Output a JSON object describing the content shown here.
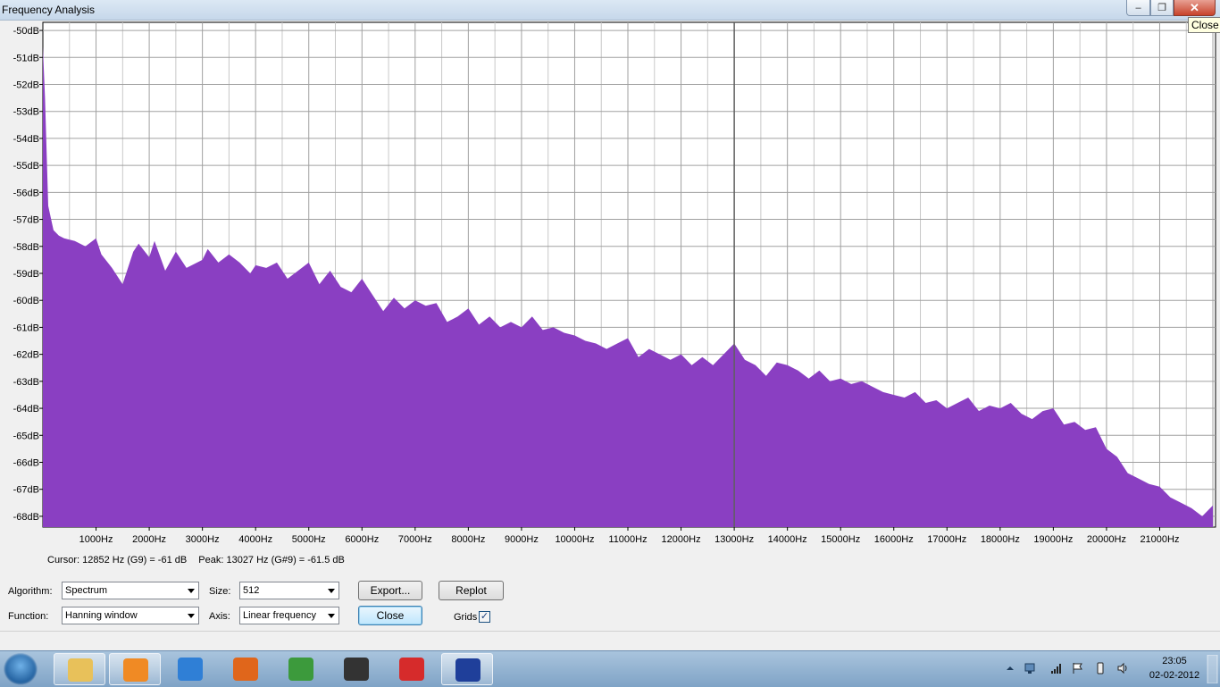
{
  "window": {
    "title": "Frequency Analysis",
    "close_tooltip": "Close"
  },
  "chart_data": {
    "type": "area",
    "color": "#8a3fc2",
    "grid": true,
    "xlabel": "",
    "ylabel": "",
    "xlim": [
      0,
      22050
    ],
    "ylim": [
      -68.4,
      -49.7
    ],
    "y_ticks": [
      "-50dB",
      "-51dB",
      "-52dB",
      "-53dB",
      "-54dB",
      "-55dB",
      "-56dB",
      "-57dB",
      "-58dB",
      "-59dB",
      "-60dB",
      "-61dB",
      "-62dB",
      "-63dB",
      "-64dB",
      "-65dB",
      "-66dB",
      "-67dB",
      "-68dB"
    ],
    "x_ticks": [
      "1000Hz",
      "2000Hz",
      "3000Hz",
      "4000Hz",
      "5000Hz",
      "6000Hz",
      "7000Hz",
      "8000Hz",
      "9000Hz",
      "10000Hz",
      "11000Hz",
      "12000Hz",
      "13000Hz",
      "14000Hz",
      "15000Hz",
      "16000Hz",
      "17000Hz",
      "18000Hz",
      "19000Hz",
      "20000Hz",
      "21000Hz"
    ],
    "series": [
      {
        "x": [
          0,
          40,
          100,
          200,
          300,
          400,
          600,
          800,
          1000,
          1100,
          1300,
          1500,
          1700,
          1800,
          2000,
          2100,
          2300,
          2500,
          2700,
          3000,
          3100,
          3300,
          3500,
          3700,
          3900,
          4000,
          4200,
          4400,
          4600,
          4800,
          5000,
          5200,
          5400,
          5600,
          5800,
          6000,
          6200,
          6400,
          6600,
          6800,
          7000,
          7200,
          7400,
          7600,
          7800,
          8000,
          8200,
          8400,
          8600,
          8800,
          9000,
          9200,
          9400,
          9600,
          9800,
          10000,
          10200,
          10400,
          10600,
          10800,
          11000,
          11200,
          11400,
          11600,
          11800,
          12000,
          12200,
          12400,
          12600,
          12800,
          13000,
          13200,
          13400,
          13600,
          13800,
          14000,
          14200,
          14400,
          14600,
          14800,
          15000,
          15200,
          15400,
          15600,
          15800,
          16000,
          16200,
          16400,
          16600,
          16800,
          17000,
          17200,
          17400,
          17600,
          17800,
          18000,
          18200,
          18400,
          18600,
          18800,
          19000,
          19200,
          19400,
          19600,
          19800,
          20000,
          20200,
          20400,
          20600,
          20800,
          21000,
          21200,
          21400,
          21600,
          21800,
          22000
        ],
        "y": [
          -50.6,
          -52.5,
          -56.5,
          -57.4,
          -57.6,
          -57.7,
          -57.8,
          -58.0,
          -57.7,
          -58.3,
          -58.8,
          -59.4,
          -58.2,
          -57.9,
          -58.4,
          -57.8,
          -58.9,
          -58.2,
          -58.8,
          -58.5,
          -58.1,
          -58.6,
          -58.3,
          -58.6,
          -59.0,
          -58.7,
          -58.8,
          -58.6,
          -59.2,
          -58.9,
          -58.6,
          -59.4,
          -58.9,
          -59.5,
          -59.7,
          -59.2,
          -59.8,
          -60.4,
          -59.9,
          -60.3,
          -60.0,
          -60.2,
          -60.1,
          -60.8,
          -60.6,
          -60.3,
          -60.9,
          -60.6,
          -61.0,
          -60.8,
          -61.0,
          -60.6,
          -61.1,
          -61.0,
          -61.2,
          -61.3,
          -61.5,
          -61.6,
          -61.8,
          -61.6,
          -61.4,
          -62.1,
          -61.8,
          -62.0,
          -62.2,
          -62.0,
          -62.4,
          -62.1,
          -62.4,
          -62.0,
          -61.6,
          -62.2,
          -62.4,
          -62.8,
          -62.3,
          -62.4,
          -62.6,
          -62.9,
          -62.6,
          -63.0,
          -62.9,
          -63.1,
          -63.0,
          -63.2,
          -63.4,
          -63.5,
          -63.6,
          -63.4,
          -63.8,
          -63.7,
          -64.0,
          -63.8,
          -63.6,
          -64.1,
          -63.9,
          -64.0,
          -63.8,
          -64.2,
          -64.4,
          -64.1,
          -64.0,
          -64.6,
          -64.5,
          -64.8,
          -64.7,
          -65.5,
          -65.8,
          -66.4,
          -66.6,
          -66.8,
          -66.9,
          -67.3,
          -67.5,
          -67.7,
          -68.0,
          -67.6
        ]
      }
    ]
  },
  "info": {
    "cursor": "Cursor: 12852 Hz (G9) = -61 dB",
    "peak": "Peak: 13027 Hz (G#9) = -61.5 dB"
  },
  "controls": {
    "algorithm_label": "Algorithm:",
    "algorithm_value": "Spectrum",
    "size_label": "Size:",
    "size_value": "512",
    "function_label": "Function:",
    "function_value": "Hanning window",
    "axis_label": "Axis:",
    "axis_value": "Linear frequency",
    "export_label": "Export...",
    "replot_label": "Replot",
    "close_label": "Close",
    "grids_label": "Grids",
    "grids_checked": true
  },
  "taskbar": {
    "items": [
      {
        "name": "windows-explorer",
        "color": "#e8c15a",
        "active": true
      },
      {
        "name": "media-player",
        "color": "#f08a24",
        "active": true
      },
      {
        "name": "internet-explorer",
        "color": "#2f7fd6",
        "active": false
      },
      {
        "name": "firefox",
        "color": "#e0661b",
        "active": false
      },
      {
        "name": "chrome",
        "color": "#3c9a3c",
        "active": false
      },
      {
        "name": "camera-app",
        "color": "#333333",
        "active": false
      },
      {
        "name": "airtel-app",
        "color": "#d62b2b",
        "active": false
      },
      {
        "name": "audacity",
        "color": "#1f3f9a",
        "active": true
      }
    ],
    "clock_time": "23:05",
    "clock_date": "02-02-2012"
  }
}
